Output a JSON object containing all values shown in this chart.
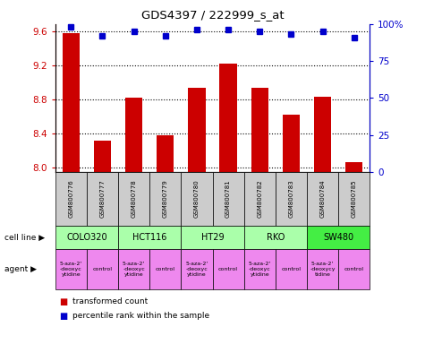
{
  "title": "GDS4397 / 222999_s_at",
  "samples": [
    "GSM800776",
    "GSM800777",
    "GSM800778",
    "GSM800779",
    "GSM800780",
    "GSM800781",
    "GSM800782",
    "GSM800783",
    "GSM800784",
    "GSM800785"
  ],
  "transformed_count": [
    9.57,
    8.32,
    8.82,
    8.38,
    8.93,
    9.22,
    8.93,
    8.62,
    8.83,
    8.07
  ],
  "percentile_rank": [
    98,
    92,
    95,
    92,
    96,
    96,
    95,
    93,
    95,
    91
  ],
  "ylim_left": [
    7.95,
    9.68
  ],
  "ylim_right": [
    0,
    100
  ],
  "yticks_left": [
    8.0,
    8.4,
    8.8,
    9.2,
    9.6
  ],
  "yticks_right": [
    0,
    25,
    50,
    75,
    100
  ],
  "cell_lines": [
    {
      "name": "COLO320",
      "start": 0,
      "end": 2,
      "color": "#aaffaa"
    },
    {
      "name": "HCT116",
      "start": 2,
      "end": 4,
      "color": "#aaffaa"
    },
    {
      "name": "HT29",
      "start": 4,
      "end": 6,
      "color": "#aaffaa"
    },
    {
      "name": "RKO",
      "start": 6,
      "end": 8,
      "color": "#aaffaa"
    },
    {
      "name": "SW480",
      "start": 8,
      "end": 10,
      "color": "#44ee44"
    }
  ],
  "agents": [
    {
      "name": "5-aza-2'\n-deoxyc\nytidine",
      "start": 0,
      "end": 1,
      "color": "#ee88ee"
    },
    {
      "name": "control",
      "start": 1,
      "end": 2,
      "color": "#ee88ee"
    },
    {
      "name": "5-aza-2'\n-deoxyc\nytidine",
      "start": 2,
      "end": 3,
      "color": "#ee88ee"
    },
    {
      "name": "control",
      "start": 3,
      "end": 4,
      "color": "#ee88ee"
    },
    {
      "name": "5-aza-2'\n-deoxyc\nytidine",
      "start": 4,
      "end": 5,
      "color": "#ee88ee"
    },
    {
      "name": "control",
      "start": 5,
      "end": 6,
      "color": "#ee88ee"
    },
    {
      "name": "5-aza-2'\n-deoxyc\nytidine",
      "start": 6,
      "end": 7,
      "color": "#ee88ee"
    },
    {
      "name": "control",
      "start": 7,
      "end": 8,
      "color": "#ee88ee"
    },
    {
      "name": "5-aza-2'\n-deoxycy\ntidine",
      "start": 8,
      "end": 9,
      "color": "#ee88ee"
    },
    {
      "name": "control",
      "start": 9,
      "end": 10,
      "color": "#ee88ee"
    }
  ],
  "bar_color": "#cc0000",
  "dot_color": "#0000cc",
  "left_axis_color": "#cc0000",
  "right_axis_color": "#0000cc",
  "sample_box_color": "#cccccc",
  "legend_red": "transformed count",
  "legend_blue": "percentile rank within the sample",
  "fig_width": 4.75,
  "fig_height": 3.84,
  "dpi": 100
}
